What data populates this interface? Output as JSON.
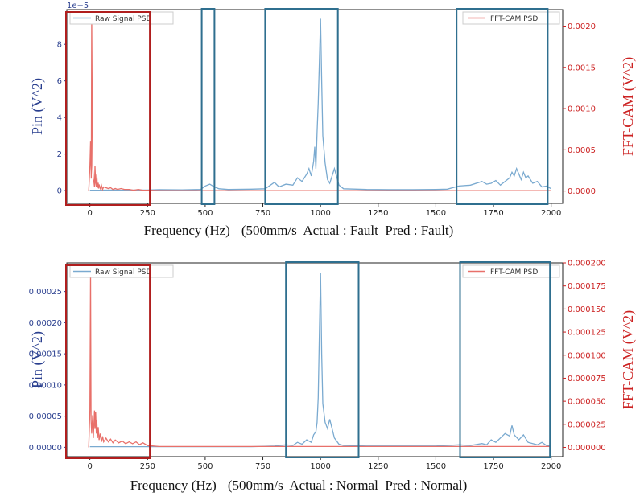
{
  "colors": {
    "raw": "#7aaad0",
    "fft": "#e8706a",
    "left_axis": "#2a3f8f",
    "right_axis": "#cc2222",
    "blue_box": "#2f6f8f",
    "red_box": "#b01e1e"
  },
  "chart_data": [
    {
      "type": "line",
      "title": "",
      "caption_xlabel": "Frequency (Hz)",
      "caption_info": "(500mm/s  Actual : Fault  Pred : Fault)",
      "ylabel_left": "Pin (V^2)",
      "ylabel_right": "FFT-CAM (V^2)",
      "left_offset_label": "1e−5",
      "x_range": [
        -100,
        2050
      ],
      "y_left_range": [
        -0.7,
        9.9
      ],
      "y_right_range": [
        -0.00015,
        0.0022
      ],
      "x_ticks": [
        0,
        250,
        500,
        750,
        1000,
        1250,
        1500,
        1750,
        2000
      ],
      "x_tick_labels": [
        "0",
        "250",
        "500",
        "750",
        "1000",
        "1250",
        "1500",
        "1750",
        "2000"
      ],
      "y_left_ticks": [
        0,
        2,
        4,
        6,
        8
      ],
      "y_left_tick_labels": [
        "0",
        "2",
        "4",
        "6",
        "8"
      ],
      "y_right_ticks": [
        0,
        0.0005,
        0.001,
        0.0015,
        0.002
      ],
      "y_right_tick_labels": [
        "0.0000",
        "0.0005",
        "0.0010",
        "0.0015",
        "0.0020"
      ],
      "legend_left": "Raw Signal PSD",
      "legend_right": "FFT-CAM PSD",
      "series": [
        {
          "name": "Raw Signal PSD",
          "axis": "left",
          "x": [
            0,
            50,
            100,
            150,
            200,
            250,
            300,
            400,
            480,
            500,
            520,
            540,
            560,
            600,
            700,
            760,
            800,
            820,
            850,
            880,
            900,
            920,
            940,
            950,
            960,
            970,
            975,
            980,
            985,
            990,
            995,
            1000,
            1005,
            1010,
            1020,
            1030,
            1040,
            1050,
            1060,
            1080,
            1100,
            1200,
            1300,
            1400,
            1500,
            1550,
            1600,
            1650,
            1700,
            1720,
            1740,
            1760,
            1780,
            1800,
            1820,
            1830,
            1840,
            1850,
            1860,
            1870,
            1880,
            1890,
            1900,
            1920,
            1940,
            1960,
            1980,
            2000
          ],
          "y": [
            0.02,
            0.02,
            0.03,
            0.02,
            0.03,
            0.03,
            0.05,
            0.04,
            0.06,
            0.25,
            0.35,
            0.2,
            0.1,
            0.06,
            0.08,
            0.1,
            0.45,
            0.2,
            0.35,
            0.3,
            0.7,
            0.5,
            0.9,
            1.2,
            0.8,
            1.6,
            2.4,
            1.2,
            3.2,
            4.8,
            7.0,
            9.4,
            6.0,
            3.0,
            1.5,
            0.6,
            0.4,
            0.8,
            1.2,
            0.3,
            0.1,
            0.06,
            0.05,
            0.05,
            0.06,
            0.08,
            0.25,
            0.3,
            0.5,
            0.35,
            0.4,
            0.55,
            0.3,
            0.5,
            0.7,
            1.0,
            0.8,
            1.2,
            0.9,
            0.6,
            1.0,
            0.7,
            0.8,
            0.4,
            0.5,
            0.2,
            0.25,
            0.1
          ]
        },
        {
          "name": "FFT-CAM PSD",
          "axis": "right",
          "x": [
            -5,
            0,
            3,
            6,
            8,
            10,
            12,
            15,
            18,
            20,
            22,
            25,
            28,
            30,
            33,
            36,
            38,
            40,
            45,
            50,
            55,
            60,
            70,
            80,
            90,
            100,
            110,
            120,
            135,
            150,
            170,
            190,
            210,
            230,
            250,
            300,
            400,
            500,
            600,
            700,
            800,
            900,
            1000,
            1100,
            1200,
            1400,
            1600,
            1800,
            2000
          ],
          "y": [
            0,
            0.0003,
            0.0006,
            0.00015,
            0.0021,
            0.0011,
            0.0003,
            0.00015,
            0.0001,
            5e-05,
            0.0003,
            0.0001,
            5e-05,
            0.0002,
            4e-05,
            0.0001,
            3e-05,
            8e-05,
            3e-05,
            7e-05,
            2e-05,
            5e-05,
            4e-05,
            3e-05,
            4e-05,
            2e-05,
            3e-05,
            2e-05,
            3e-05,
            2e-05,
            2e-05,
            1e-05,
            2e-05,
            1e-05,
            1e-05,
            5e-06,
            4e-06,
            5e-06,
            4e-06,
            5e-06,
            4e-06,
            4e-06,
            5e-06,
            4e-06,
            4e-06,
            4e-06,
            4e-06,
            4e-06,
            4e-06
          ]
        }
      ],
      "highlight_boxes": [
        {
          "color": "red",
          "x_range": [
            -105,
            260
          ]
        },
        {
          "color": "blue",
          "x_range": [
            485,
            540
          ]
        },
        {
          "color": "blue",
          "x_range": [
            760,
            1075
          ]
        },
        {
          "color": "blue",
          "x_range": [
            1590,
            1985
          ]
        }
      ]
    },
    {
      "type": "line",
      "title": "",
      "caption_xlabel": "Frequency (Hz)",
      "caption_info": "(500mm/s  Actual : Normal  Pred : Normal)",
      "ylabel_left": "Pin (V^2)",
      "ylabel_right": "FFT-CAM (V^2)",
      "left_offset_label": "",
      "x_range": [
        -100,
        2050
      ],
      "y_left_range": [
        -1.5e-05,
        0.000296
      ],
      "y_right_range": [
        -1e-05,
        0.0002
      ],
      "x_ticks": [
        0,
        250,
        500,
        750,
        1000,
        1250,
        1500,
        1750,
        2000
      ],
      "x_tick_labels": [
        "0",
        "250",
        "500",
        "750",
        "1000",
        "1250",
        "1500",
        "1750",
        "2000"
      ],
      "y_left_ticks": [
        0,
        5e-05,
        0.0001,
        0.00015,
        0.0002,
        0.00025
      ],
      "y_left_tick_labels": [
        "0.00000",
        "0.00005",
        "0.00010",
        "0.00015",
        "0.00020",
        "0.00025"
      ],
      "y_right_ticks": [
        0,
        2.5e-05,
        5e-05,
        7.5e-05,
        0.0001,
        0.000125,
        0.00015,
        0.000175,
        0.0002
      ],
      "y_right_tick_labels": [
        "0.000000",
        "0.000025",
        "0.000050",
        "0.000075",
        "0.000100",
        "0.000125",
        "0.000150",
        "0.000175",
        "0.000200"
      ],
      "legend_left": "Raw Signal PSD",
      "legend_right": "FFT-CAM PSD",
      "series": [
        {
          "name": "Raw Signal PSD",
          "axis": "left",
          "x": [
            0,
            100,
            200,
            300,
            400,
            500,
            600,
            700,
            800,
            850,
            880,
            900,
            920,
            940,
            960,
            970,
            980,
            985,
            990,
            995,
            1000,
            1005,
            1010,
            1020,
            1030,
            1040,
            1050,
            1060,
            1080,
            1100,
            1200,
            1300,
            1400,
            1500,
            1600,
            1650,
            1700,
            1720,
            1740,
            1760,
            1780,
            1800,
            1820,
            1830,
            1840,
            1860,
            1880,
            1900,
            1920,
            1940,
            1960,
            1980,
            2000
          ],
          "y": [
            1e-06,
            1e-06,
            1e-06,
            1e-06,
            1e-06,
            1e-06,
            1e-06,
            1e-06,
            2e-06,
            4e-06,
            3e-06,
            8e-06,
            5e-06,
            1.2e-05,
            8e-06,
            2e-05,
            2.5e-05,
            4e-05,
            8e-05,
            0.00018,
            0.00028,
            0.00015,
            7e-05,
            4e-05,
            3e-05,
            4.5e-05,
            3e-05,
            1.5e-05,
            5e-06,
            3e-06,
            2e-06,
            2e-06,
            2e-06,
            2e-06,
            4e-06,
            3e-06,
            6e-06,
            4e-06,
            1.2e-05,
            8e-06,
            1.5e-05,
            2.2e-05,
            1.8e-05,
            3.5e-05,
            2e-05,
            1.2e-05,
            2e-05,
            8e-06,
            6e-06,
            4e-06,
            8e-06,
            3e-06,
            2e-06
          ]
        },
        {
          "name": "FFT-CAM PSD",
          "axis": "right",
          "x": [
            -5,
            0,
            3,
            5,
            8,
            10,
            12,
            15,
            18,
            20,
            22,
            25,
            28,
            30,
            33,
            36,
            40,
            45,
            50,
            55,
            60,
            70,
            80,
            90,
            100,
            110,
            125,
            140,
            155,
            170,
            185,
            200,
            215,
            230,
            250,
            300,
            400,
            500,
            600,
            700,
            800,
            900,
            1000,
            1100,
            1200,
            1400,
            1600,
            1800,
            2000
          ],
          "y": [
            0,
            4e-05,
            0.00019,
            3e-05,
            1.5e-05,
            2.5e-05,
            3.5e-05,
            1e-05,
            2.8e-05,
            4e-05,
            2e-05,
            3.8e-05,
            1.5e-05,
            3e-05,
            1e-05,
            2.2e-05,
            8e-06,
            1.5e-05,
            6e-06,
            1.2e-05,
            6e-06,
            1e-05,
            6e-06,
            9e-06,
            5e-06,
            8e-06,
            5e-06,
            7e-06,
            4e-06,
            6e-06,
            4e-06,
            6e-06,
            3e-06,
            5e-06,
            2e-06,
            1e-06,
            1e-06,
            1e-06,
            1e-06,
            1e-06,
            1e-06,
            1e-06,
            1e-06,
            1e-06,
            1e-06,
            1e-06,
            1e-06,
            1e-06,
            1e-06
          ]
        }
      ],
      "highlight_boxes": [
        {
          "color": "red",
          "x_range": [
            -105,
            260
          ]
        },
        {
          "color": "blue",
          "x_range": [
            850,
            1165
          ]
        },
        {
          "color": "blue",
          "x_range": [
            1605,
            1995
          ]
        }
      ]
    }
  ]
}
